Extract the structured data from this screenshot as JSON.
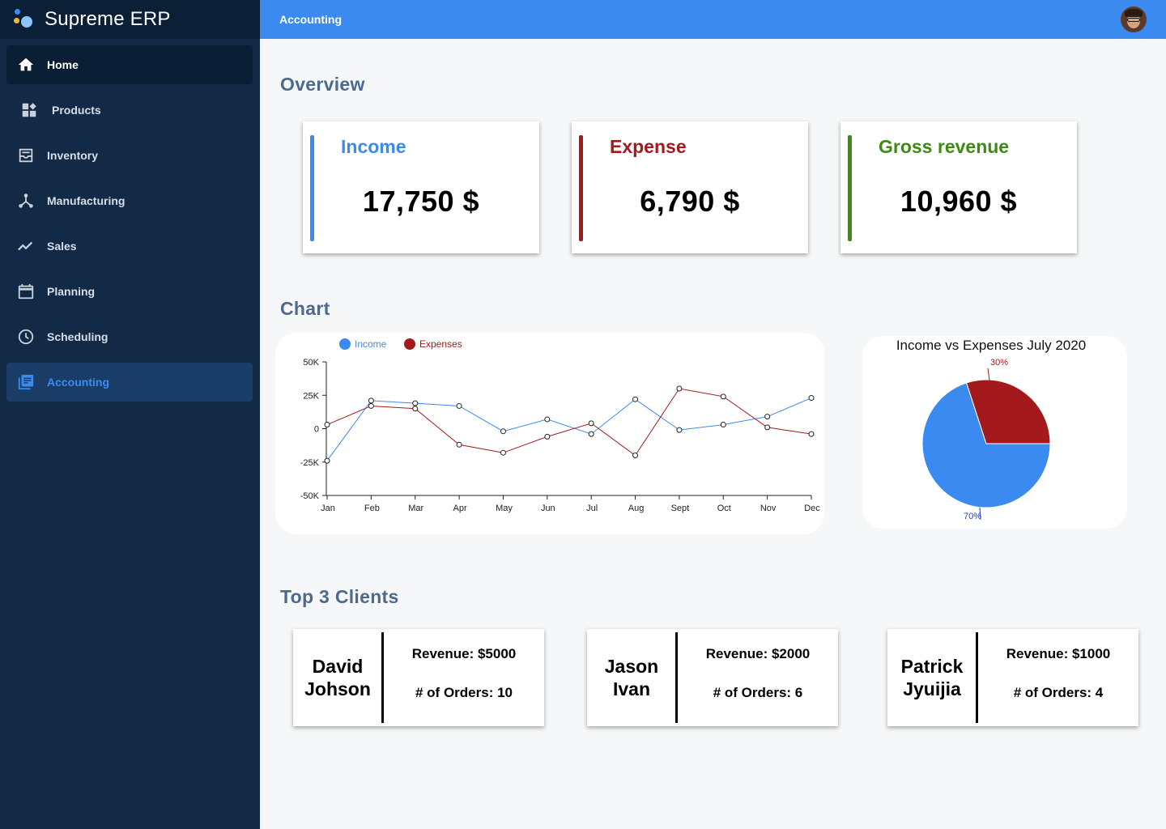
{
  "app": {
    "name": "Supreme ERP"
  },
  "topbar": {
    "title": "Accounting"
  },
  "sidebar": {
    "items": [
      {
        "label": "Home",
        "icon": "home-icon"
      },
      {
        "label": "Products",
        "icon": "dashboard-icon"
      },
      {
        "label": "Inventory",
        "icon": "inbox-icon"
      },
      {
        "label": "Manufacturing",
        "icon": "network-icon"
      },
      {
        "label": "Sales",
        "icon": "trending-up-icon"
      },
      {
        "label": "Planning",
        "icon": "calendar-icon"
      },
      {
        "label": "Scheduling",
        "icon": "clock-icon"
      },
      {
        "label": "Accounting",
        "icon": "library-books-icon"
      }
    ],
    "active": "Accounting"
  },
  "overview": {
    "title": "Overview",
    "cards": [
      {
        "label": "Income",
        "value": "17,750 $",
        "color": "#3b8aef"
      },
      {
        "label": "Expense",
        "value": "6,790 $",
        "color": "#a4191b"
      },
      {
        "label": "Gross revenue",
        "value": "10,960 $",
        "color": "#3d8c12"
      }
    ]
  },
  "chart_section": {
    "title": "Chart"
  },
  "chart_data": [
    {
      "type": "line",
      "categories": [
        "Jan",
        "Feb",
        "Mar",
        "Apr",
        "May",
        "Jun",
        "Jul",
        "Aug",
        "Sept",
        "Oct",
        "Nov",
        "Dec"
      ],
      "series": [
        {
          "name": "Income",
          "color": "#3b8aef",
          "values": [
            -24000,
            21000,
            19000,
            17000,
            -2000,
            7000,
            -4000,
            22000,
            -1000,
            3000,
            9000,
            23000
          ]
        },
        {
          "name": "Expenses",
          "color": "#a4191b",
          "values": [
            3000,
            17000,
            15000,
            -12000,
            -18000,
            -6000,
            4000,
            -20000,
            30000,
            24000,
            1000,
            -4000
          ]
        }
      ],
      "yticks": [
        "50K",
        "25K",
        "0",
        "-25K",
        "-50K"
      ],
      "ylim": [
        -50000,
        50000
      ],
      "legend": "top-left"
    },
    {
      "type": "pie",
      "title": "Income vs Expenses July 2020",
      "slices": [
        {
          "label": "Income",
          "value": 70,
          "text": "70%",
          "color": "#3b8aef"
        },
        {
          "label": "Expenses",
          "value": 30,
          "text": "30%",
          "color": "#a4191b"
        }
      ]
    }
  ],
  "clients": {
    "title": "Top 3 Clients",
    "items": [
      {
        "name": "David Johson",
        "revenue": "Revenue: $5000",
        "orders": "# of Orders: 10"
      },
      {
        "name": "Jason Ivan",
        "revenue": "Revenue: $2000",
        "orders": "# of Orders: 6"
      },
      {
        "name": "Patrick Jyuijia",
        "revenue": "Revenue: $1000",
        "orders": "# of Orders: 4"
      }
    ]
  }
}
